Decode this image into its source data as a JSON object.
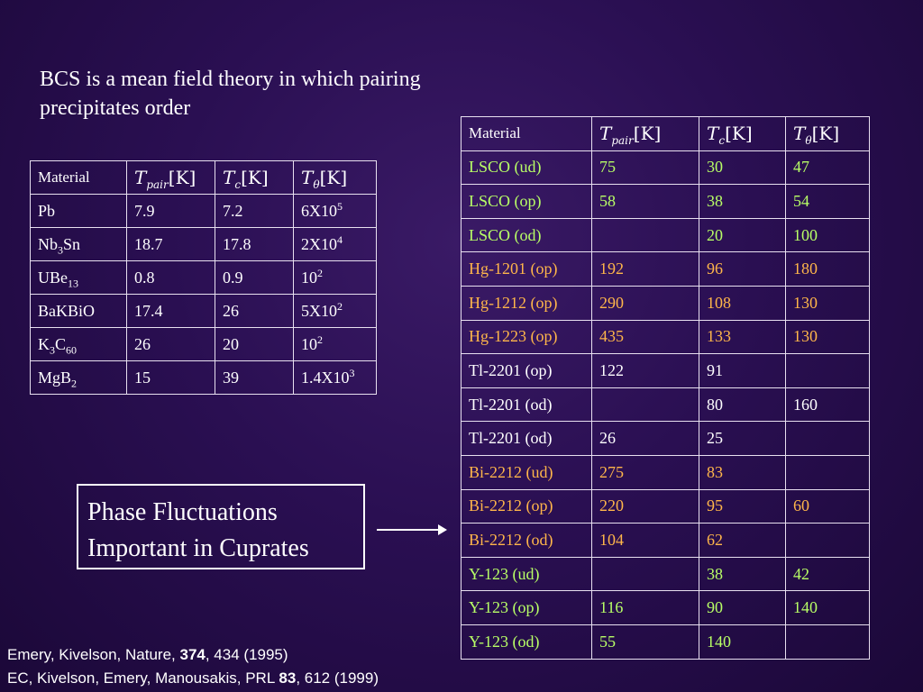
{
  "title": "BCS is a mean field theory in which pairing precipitates order",
  "headers": {
    "material": "Material",
    "t_pair": "T",
    "t_pair_sub": "pair",
    "t_c": "T",
    "t_c_sub": "c",
    "t_theta": "T",
    "t_theta_sub": "θ",
    "unit": "[K]"
  },
  "left_table": {
    "rows": [
      {
        "material": "Pb",
        "sub": "",
        "t_pair": "7.9",
        "t_c": "7.2",
        "t_theta": "6X10",
        "exp": "5"
      },
      {
        "material": "Nb",
        "sub": "3",
        "material_tail": "Sn",
        "t_pair": "18.7",
        "t_c": "17.8",
        "t_theta": "2X10",
        "exp": "4"
      },
      {
        "material": "UBe",
        "sub": "13",
        "t_pair": "0.8",
        "t_c": "0.9",
        "t_theta": "10",
        "exp": "2"
      },
      {
        "material": "BaKBiO",
        "sub": "",
        "t_pair": "17.4",
        "t_c": "26",
        "t_theta": "5X10",
        "exp": "2"
      },
      {
        "material": "K",
        "sub": "3",
        "material_tail": "C",
        "sub2": "60",
        "t_pair": "26",
        "t_c": "20",
        "t_theta": "10",
        "exp": "2"
      },
      {
        "material": "MgB",
        "sub": "2",
        "t_pair": "15",
        "t_c": "39",
        "t_theta": "1.4X10",
        "exp": "3"
      }
    ]
  },
  "right_table": {
    "rows": [
      {
        "material": "LSCO (ud)",
        "t_pair": "75",
        "t_c": "30",
        "t_theta": "47",
        "color": "#b8ff66"
      },
      {
        "material": "LSCO (op)",
        "t_pair": "58",
        "t_c": "38",
        "t_theta": "54",
        "color": "#b8ff66"
      },
      {
        "material": "LSCO (od)",
        "t_pair": "",
        "t_c": "20",
        "t_theta": "100",
        "color": "#b8ff66"
      },
      {
        "material": "Hg-1201 (op)",
        "t_pair": "192",
        "t_c": "96",
        "t_theta": "180",
        "color": "#ffb64a"
      },
      {
        "material": "Hg-1212 (op)",
        "t_pair": "290",
        "t_c": "108",
        "t_theta": "130",
        "color": "#ffb64a"
      },
      {
        "material": "Hg-1223 (op)",
        "t_pair": "435",
        "t_c": "133",
        "t_theta": "130",
        "color": "#ffb64a"
      },
      {
        "material": "Tl-2201 (op)",
        "t_pair": "122",
        "t_c": "91",
        "t_theta": "",
        "color": "#ffffff"
      },
      {
        "material": "Tl-2201 (od)",
        "t_pair": "",
        "t_c": "80",
        "t_theta": "160",
        "color": "#ffffff"
      },
      {
        "material": "Tl-2201 (od)",
        "t_pair": "26",
        "t_c": "25",
        "t_theta": "",
        "color": "#ffffff"
      },
      {
        "material": "Bi-2212 (ud)",
        "t_pair": "275",
        "t_c": "83",
        "t_theta": "",
        "color": "#ffb64a"
      },
      {
        "material": "Bi-2212 (op)",
        "t_pair": "220",
        "t_c": "95",
        "t_theta": "60",
        "color": "#ffb64a"
      },
      {
        "material": "Bi-2212 (od)",
        "t_pair": "104",
        "t_c": "62",
        "t_theta": "",
        "color": "#ffb64a"
      },
      {
        "material": "Y-123 (ud)",
        "t_pair": "",
        "t_c": "38",
        "t_theta": "42",
        "color": "#b8ff66"
      },
      {
        "material": "Y-123 (op)",
        "t_pair": "116",
        "t_c": "90",
        "t_theta": "140",
        "color": "#b8ff66"
      },
      {
        "material": "Y-123 (od)",
        "t_pair": "55",
        "t_c": "140",
        "t_theta": "",
        "color": "#b8ff66"
      }
    ]
  },
  "callout": {
    "line1": "Phase Fluctuations",
    "line2": "Important in Cuprates"
  },
  "references": {
    "ref1_pre": "Emery, Kivelson, Nature, ",
    "ref1_bold": "374",
    "ref1_post": ", 434 (1995)",
    "ref2_pre": "EC, Kivelson, Emery, Manousakis, PRL ",
    "ref2_bold": "83",
    "ref2_post": ", 612 (1999)"
  },
  "colors": {
    "background": "#2a0f52",
    "green_rows": "#b8ff66",
    "orange_rows": "#ffb64a",
    "border": "#e8e0f0"
  }
}
